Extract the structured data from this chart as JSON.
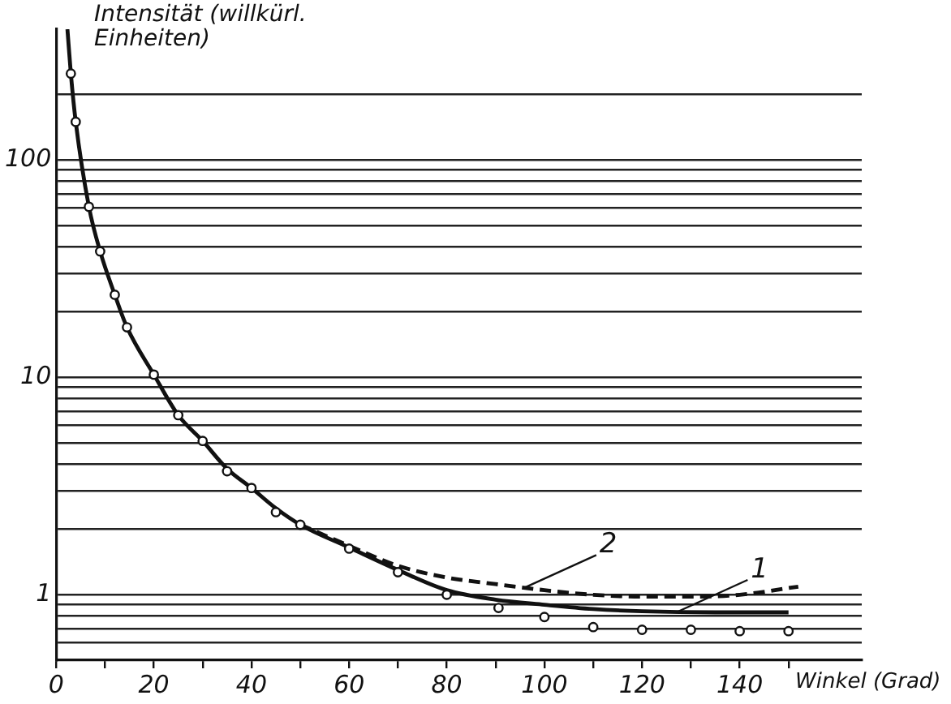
{
  "chart_data": {
    "type": "scatter",
    "xlabel": "Winkel (Grad)",
    "ylabel": "Intensität (willkürl. Einheiten)",
    "log": "y",
    "grid": "y",
    "legend": false,
    "xlim": [
      0,
      165
    ],
    "ylim": [
      0.5,
      400
    ],
    "xticks": [
      0,
      {
        "value": 10,
        "label": null
      },
      20,
      {
        "value": 30,
        "label": null
      },
      40,
      {
        "value": 50,
        "label": null
      },
      60,
      {
        "value": 70,
        "label": null
      },
      80,
      {
        "value": 90,
        "label": null
      },
      100,
      {
        "value": 110,
        "label": null
      },
      120,
      {
        "value": 130,
        "label": null
      },
      140,
      {
        "value": 150,
        "label": null
      }
    ],
    "yticks": [
      {
        "value": 0.6,
        "label": null
      },
      {
        "value": 0.7,
        "label": null
      },
      {
        "value": 0.8,
        "label": null
      },
      {
        "value": 0.9,
        "label": null
      },
      1,
      {
        "value": 2,
        "label": null
      },
      {
        "value": 3,
        "label": null
      },
      {
        "value": 4,
        "label": null
      },
      {
        "value": 5,
        "label": null
      },
      {
        "value": 6,
        "label": null
      },
      {
        "value": 7,
        "label": null
      },
      {
        "value": 8,
        "label": null
      },
      {
        "value": 9,
        "label": null
      },
      10,
      {
        "value": 20,
        "label": null
      },
      {
        "value": 30,
        "label": null
      },
      {
        "value": 40,
        "label": null
      },
      {
        "value": 50,
        "label": null
      },
      {
        "value": 60,
        "label": null
      },
      {
        "value": 70,
        "label": null
      },
      {
        "value": 80,
        "label": null
      },
      {
        "value": 90,
        "label": null
      },
      100,
      {
        "value": 200,
        "label": null
      }
    ],
    "series": [
      {
        "marker": "circle",
        "color": "#111111",
        "x": [
          3,
          4,
          6.7,
          9,
          12,
          14.5,
          20,
          25,
          30,
          35,
          40,
          45,
          50,
          60,
          70,
          80,
          90.6,
          100,
          110,
          120,
          130,
          140,
          150
        ],
        "values": [
          250,
          150,
          61,
          38,
          24,
          17,
          10.3,
          6.7,
          5.1,
          3.7,
          3.1,
          2.4,
          2.1,
          1.63,
          1.27,
          1.0,
          0.87,
          0.79,
          0.71,
          0.69,
          0.69,
          0.68,
          0.68
        ]
      },
      {
        "type": "line",
        "color": "#111111",
        "line_style": "solid",
        "x": [
          2.3,
          3,
          4,
          6.7,
          9,
          12,
          14.5,
          20,
          25,
          30,
          35,
          40,
          45,
          50,
          60,
          70,
          80,
          90,
          100,
          110,
          120,
          135,
          150
        ],
        "values": [
          400,
          250,
          150,
          61,
          38,
          24,
          17,
          10.3,
          6.7,
          5.1,
          3.8,
          3.1,
          2.5,
          2.1,
          1.65,
          1.3,
          1.05,
          0.95,
          0.9,
          0.86,
          0.84,
          0.83,
          0.83
        ]
      },
      {
        "type": "line",
        "color": "#111111",
        "line_style": "dashed",
        "x": [
          50,
          60,
          70,
          80,
          90,
          100,
          110,
          120,
          130,
          140,
          152
        ],
        "values": [
          2.1,
          1.68,
          1.36,
          1.2,
          1.12,
          1.05,
          1.0,
          0.98,
          0.98,
          1.0,
          1.09
        ]
      }
    ],
    "annotations": [
      {
        "text": "2",
        "x": 96,
        "y": 1.08
      },
      {
        "text": "1",
        "x": 127,
        "y": 0.83
      }
    ]
  }
}
